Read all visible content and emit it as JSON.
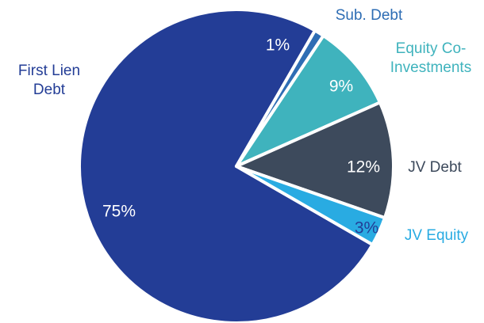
{
  "chart_data": {
    "type": "pie",
    "categories": [
      "First Lien Debt",
      "Sub. Debt",
      "Equity Co-Investments",
      "JV Debt",
      "JV Equity"
    ],
    "values": [
      75,
      1,
      9,
      12,
      3
    ],
    "value_labels": [
      "75%",
      "1%",
      "9%",
      "12%",
      "3%"
    ],
    "colors": [
      "#233d96",
      "#2e6db4",
      "#3fb3bd",
      "#3d4a5c",
      "#29abe2"
    ]
  }
}
